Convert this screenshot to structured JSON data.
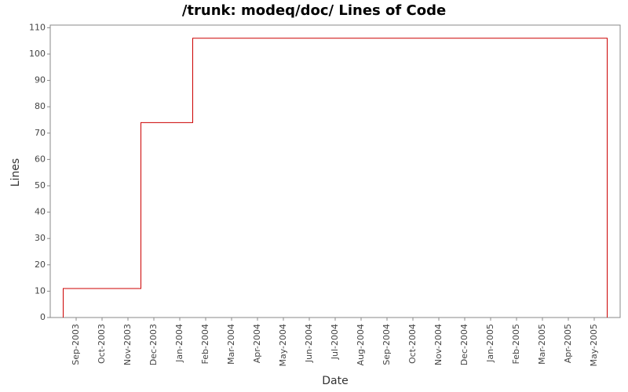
{
  "chart_data": {
    "type": "line",
    "step": "post",
    "title": "/trunk: modeq/doc/ Lines of Code",
    "xlabel": "Date",
    "ylabel": "Lines",
    "x": [
      "2003-08",
      "2003-08",
      "2003-08",
      "2003-11",
      "2003-11",
      "2003-11",
      "2004-01",
      "2005-05"
    ],
    "series": [
      {
        "color": "#cc0000",
        "values": [
          0,
          10,
          11,
          41,
          72,
          74,
          106,
          0
        ]
      }
    ],
    "xlim": [
      "2003-08",
      "2005-06"
    ],
    "xticks": [
      {
        "value": "2003-09",
        "label": "Sep-2003"
      },
      {
        "value": "2003-10",
        "label": "Oct-2003"
      },
      {
        "value": "2003-11",
        "label": "Nov-2003"
      },
      {
        "value": "2003-12",
        "label": "Dec-2003"
      },
      {
        "value": "2004-01",
        "label": "Jan-2004"
      },
      {
        "value": "2004-02",
        "label": "Feb-2004"
      },
      {
        "value": "2004-03",
        "label": "Mar-2004"
      },
      {
        "value": "2004-04",
        "label": "Apr-2004"
      },
      {
        "value": "2004-05",
        "label": "May-2004"
      },
      {
        "value": "2004-06",
        "label": "Jun-2004"
      },
      {
        "value": "2004-07",
        "label": "Jul-2004"
      },
      {
        "value": "2004-08",
        "label": "Aug-2004"
      },
      {
        "value": "2004-09",
        "label": "Sep-2004"
      },
      {
        "value": "2004-10",
        "label": "Oct-2004"
      },
      {
        "value": "2004-11",
        "label": "Nov-2004"
      },
      {
        "value": "2004-12",
        "label": "Dec-2004"
      },
      {
        "value": "2005-01",
        "label": "Jan-2005"
      },
      {
        "value": "2005-02",
        "label": "Feb-2005"
      },
      {
        "value": "2005-03",
        "label": "Mar-2005"
      },
      {
        "value": "2005-04",
        "label": "Apr-2005"
      },
      {
        "value": "2005-05",
        "label": "May-2005"
      }
    ],
    "ylim": [
      0,
      111
    ],
    "yticks": [
      0,
      10,
      20,
      30,
      40,
      50,
      60,
      70,
      80,
      90,
      100,
      110
    ],
    "grid": false
  }
}
